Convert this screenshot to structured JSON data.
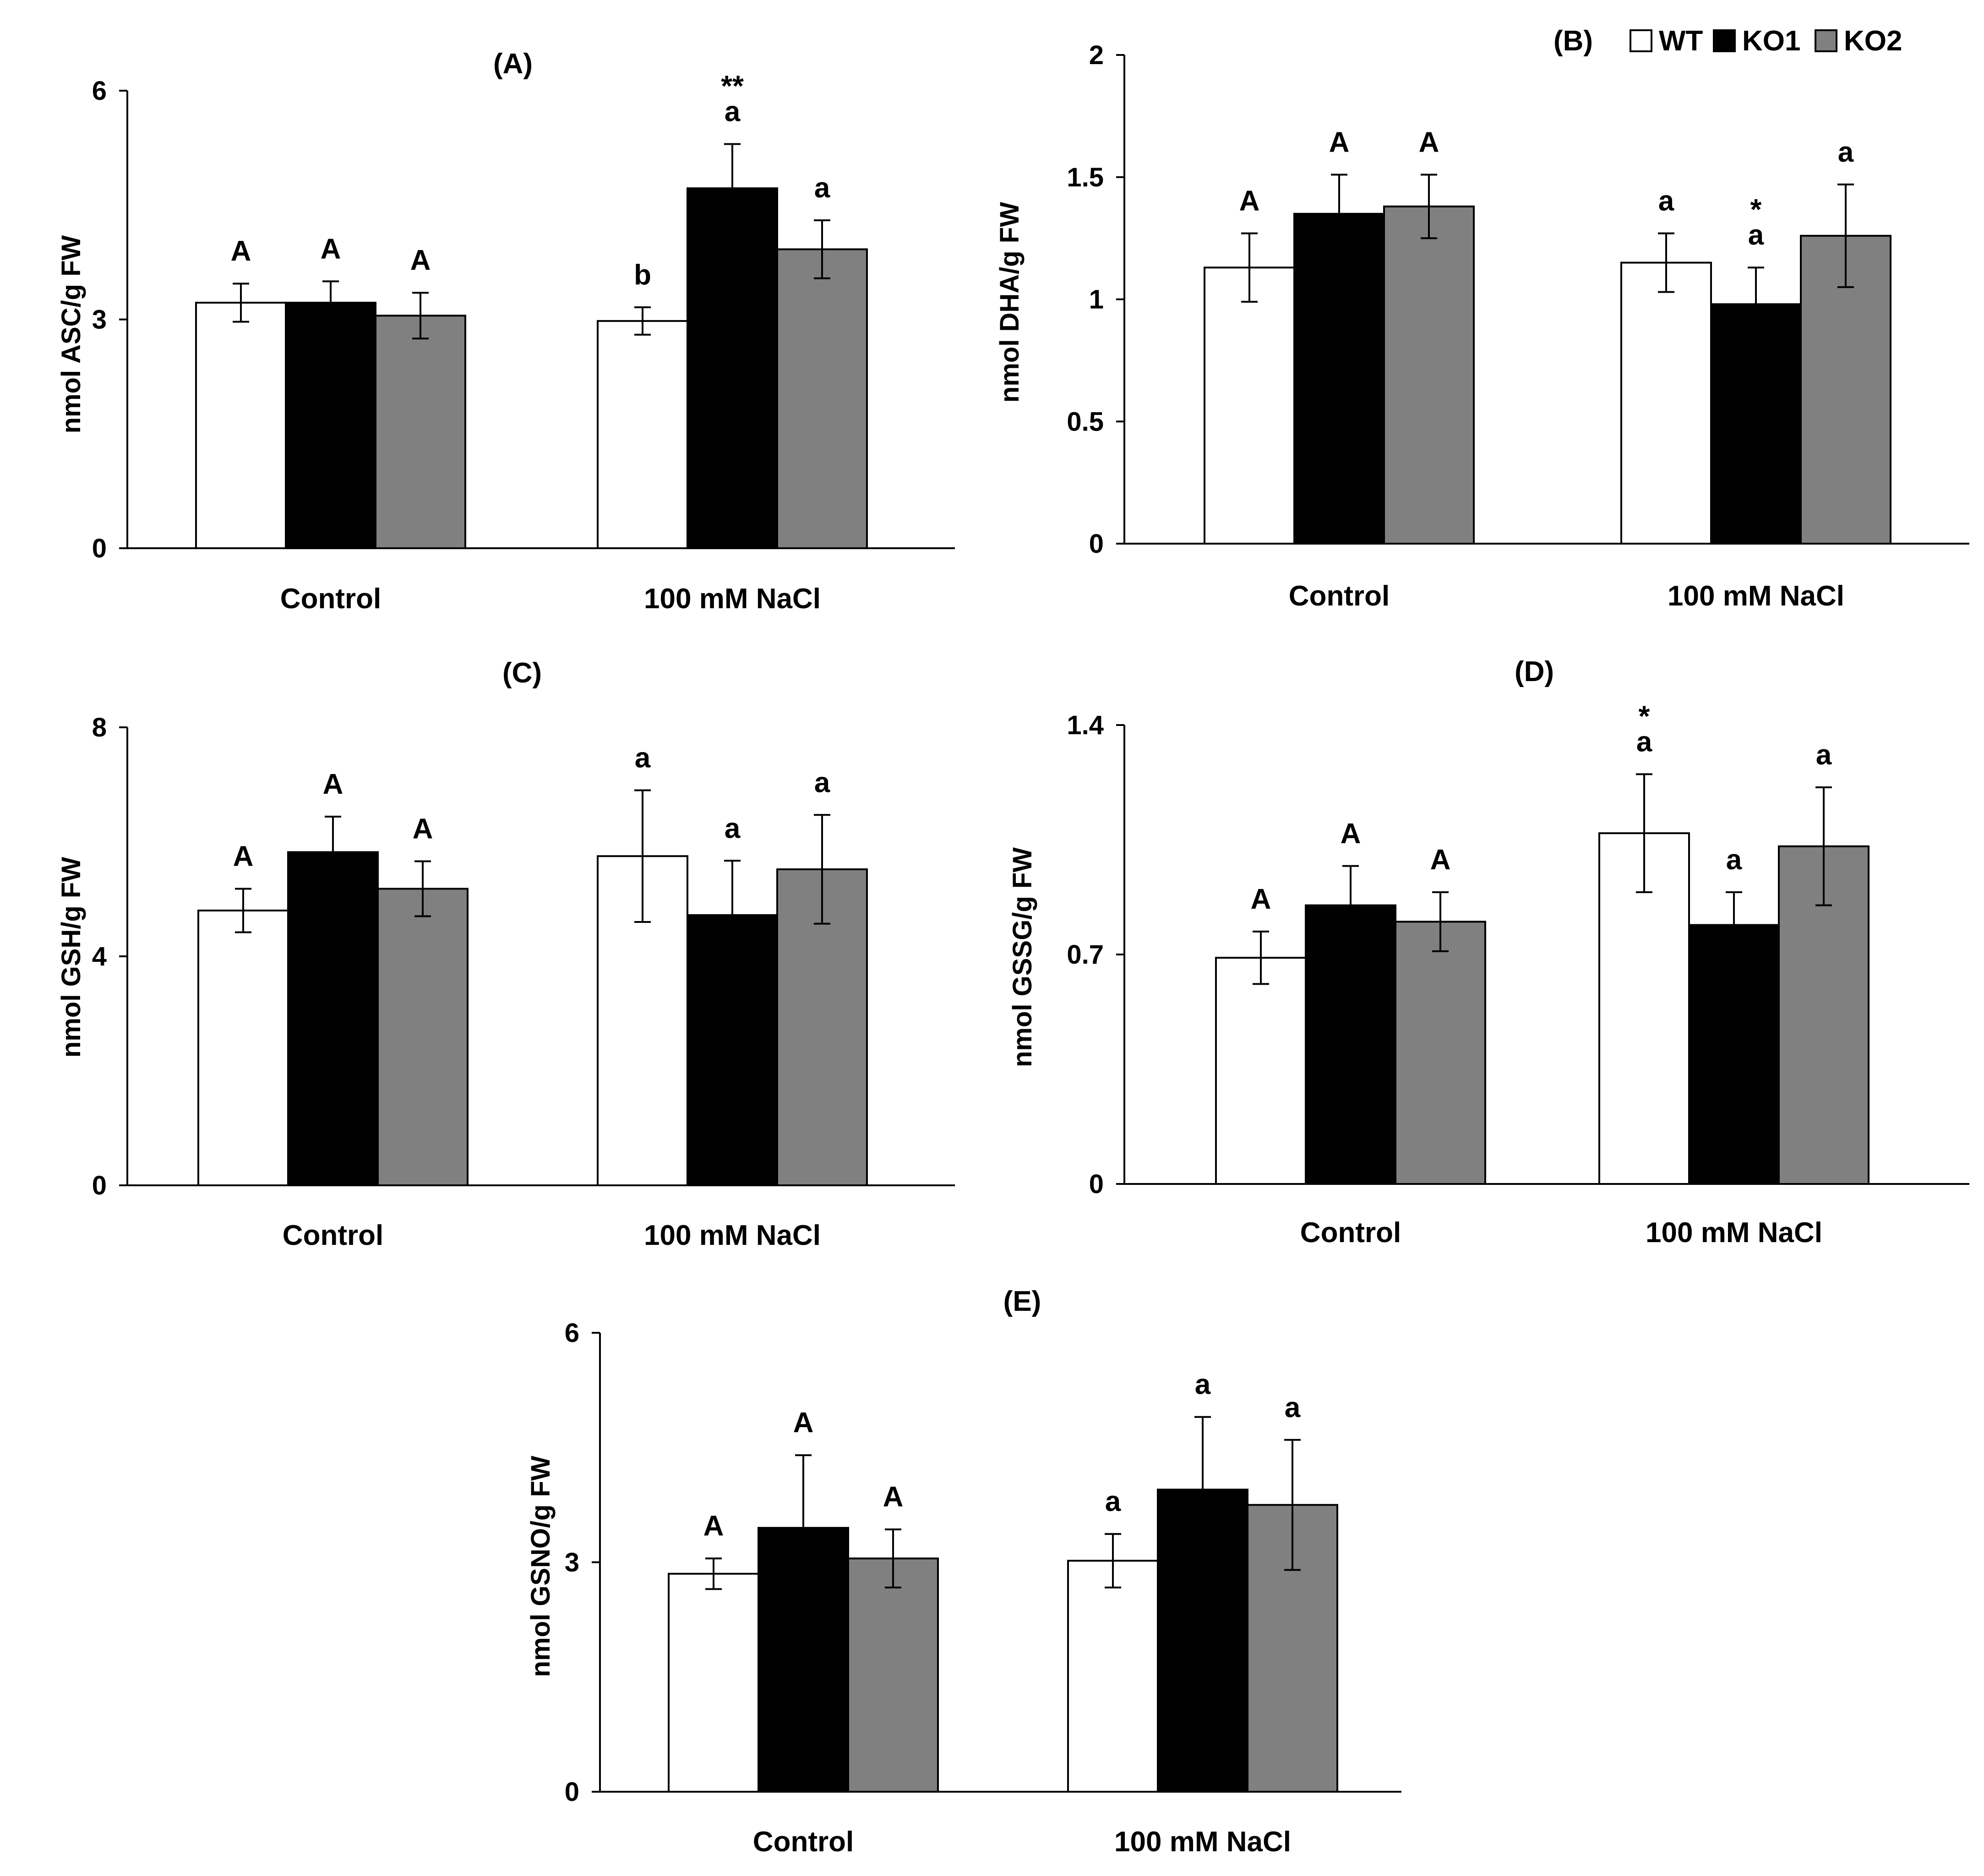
{
  "legend": {
    "items": [
      {
        "label": "WT",
        "color": "#ffffff"
      },
      {
        "label": "KO1",
        "color": "#000000"
      },
      {
        "label": "KO2",
        "color": "#808080"
      }
    ],
    "placement": "top-right of panel (B)"
  },
  "chart_data": [
    {
      "panel": "(A)",
      "type": "bar",
      "categories": [
        "Control",
        "100 mM NaCl"
      ],
      "ylabel": "nmol ASC/g FW",
      "ylim": [
        0,
        6
      ],
      "yticks": [
        "0",
        "3",
        "6"
      ],
      "series": [
        {
          "name": "WT",
          "values": [
            3.22,
            2.98
          ],
          "errors": [
            0.25,
            0.18
          ],
          "labels": [
            [
              "A"
            ],
            [
              "b"
            ]
          ]
        },
        {
          "name": "KO1",
          "values": [
            3.22,
            4.72
          ],
          "errors": [
            0.28,
            0.58
          ],
          "labels": [
            [
              "A"
            ],
            [
              "a",
              "**"
            ]
          ]
        },
        {
          "name": "KO2",
          "values": [
            3.05,
            3.92
          ],
          "errors": [
            0.3,
            0.38
          ],
          "labels": [
            [
              "A"
            ],
            [
              "a"
            ]
          ]
        }
      ]
    },
    {
      "panel": "(B)",
      "type": "bar",
      "categories": [
        "Control",
        "100 mM NaCl"
      ],
      "ylabel": "nmol DHA/g FW",
      "ylim": [
        0,
        2
      ],
      "yticks": [
        "0",
        "0.5",
        "1",
        "1.5",
        "2"
      ],
      "series": [
        {
          "name": "WT",
          "values": [
            1.13,
            1.15
          ],
          "errors": [
            0.14,
            0.12
          ],
          "labels": [
            [
              "A"
            ],
            [
              "a"
            ]
          ]
        },
        {
          "name": "KO1",
          "values": [
            1.35,
            0.98
          ],
          "errors": [
            0.16,
            0.15
          ],
          "labels": [
            [
              "A"
            ],
            [
              "a",
              "*"
            ]
          ]
        },
        {
          "name": "KO2",
          "values": [
            1.38,
            1.26
          ],
          "errors": [
            0.13,
            0.21
          ],
          "labels": [
            [
              "A"
            ],
            [
              "a"
            ]
          ]
        }
      ]
    },
    {
      "panel": "(C)",
      "type": "bar",
      "categories": [
        "Control",
        "100 mM NaCl"
      ],
      "ylabel": "nmol GSH/g FW",
      "ylim": [
        0,
        8
      ],
      "yticks": [
        "0",
        "4",
        "8"
      ],
      "series": [
        {
          "name": "WT",
          "values": [
            4.8,
            5.75
          ],
          "errors": [
            0.38,
            1.15
          ],
          "labels": [
            [
              "A"
            ],
            [
              "a"
            ]
          ]
        },
        {
          "name": "KO1",
          "values": [
            5.82,
            4.72
          ],
          "errors": [
            0.62,
            0.95
          ],
          "labels": [
            [
              "A"
            ],
            [
              "a"
            ]
          ]
        },
        {
          "name": "KO2",
          "values": [
            5.18,
            5.52
          ],
          "errors": [
            0.48,
            0.95
          ],
          "labels": [
            [
              "A"
            ],
            [
              "a"
            ]
          ]
        }
      ]
    },
    {
      "panel": "(D)",
      "type": "bar",
      "categories": [
        "Control",
        "100 mM NaCl"
      ],
      "ylabel": "nmol GSSG/g FW",
      "ylim": [
        0,
        1.4
      ],
      "yticks": [
        "0",
        "0.7",
        "1.4"
      ],
      "series": [
        {
          "name": "WT",
          "values": [
            0.69,
            1.07
          ],
          "errors": [
            0.08,
            0.18
          ],
          "labels": [
            [
              "A"
            ],
            [
              "a",
              "*"
            ]
          ]
        },
        {
          "name": "KO1",
          "values": [
            0.85,
            0.79
          ],
          "errors": [
            0.12,
            0.1
          ],
          "labels": [
            [
              "A"
            ],
            [
              "a"
            ]
          ]
        },
        {
          "name": "KO2",
          "values": [
            0.8,
            1.03
          ],
          "errors": [
            0.09,
            0.18
          ],
          "labels": [
            [
              "A"
            ],
            [
              "a"
            ]
          ]
        }
      ]
    },
    {
      "panel": "(E)",
      "type": "bar",
      "categories": [
        "Control",
        "100 mM NaCl"
      ],
      "ylabel": "nmol GSNO/g FW",
      "ylim": [
        0,
        6
      ],
      "yticks": [
        "0",
        "3",
        "6"
      ],
      "series": [
        {
          "name": "WT",
          "values": [
            2.85,
            3.02
          ],
          "errors": [
            0.2,
            0.35
          ],
          "labels": [
            [
              "A"
            ],
            [
              "a"
            ]
          ]
        },
        {
          "name": "KO1",
          "values": [
            3.45,
            3.95
          ],
          "errors": [
            0.95,
            0.95
          ],
          "labels": [
            [
              "A"
            ],
            [
              "a"
            ]
          ]
        },
        {
          "name": "KO2",
          "values": [
            3.05,
            3.75
          ],
          "errors": [
            0.38,
            0.85
          ],
          "labels": [
            [
              "A"
            ],
            [
              "a"
            ]
          ]
        }
      ]
    }
  ]
}
